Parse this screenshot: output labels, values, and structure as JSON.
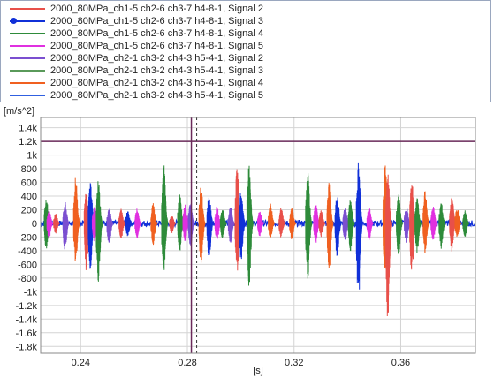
{
  "legend": [
    {
      "label": "2000_80MPa_ch1-5 ch2-6 ch3-7 h4-8-1, Signal 2",
      "color": "#e8504a",
      "marker": false
    },
    {
      "label": "2000_80MPa_ch1-5 ch2-6 ch3-7 h4-8-1, Signal 3",
      "color": "#1030d8",
      "marker": true
    },
    {
      "label": "2000_80MPa_ch1-5 ch2-6 ch3-7 h4-8-1, Signal 4",
      "color": "#2e8b3a",
      "marker": false
    },
    {
      "label": "2000_80MPa_ch1-5 ch2-6 ch3-7 h4-8-1, Signal 5",
      "color": "#e030e0",
      "marker": false
    },
    {
      "label": "2000_80MPa_ch2-1 ch3-2 ch4-3 h5-4-1, Signal 2",
      "color": "#7b4fd0",
      "marker": false
    },
    {
      "label": "2000_80MPa_ch2-1 ch3-2 ch4-3 h5-4-1, Signal 3",
      "color": "#5a9a5a",
      "marker": false
    },
    {
      "label": "2000_80MPa_ch2-1 ch3-2 ch4-3 h5-4-1, Signal 4",
      "color": "#f06020",
      "marker": false
    },
    {
      "label": "2000_80MPa_ch2-1 ch3-2 ch4-3 h5-4-1, Signal 5",
      "color": "#3060e0",
      "marker": false
    }
  ],
  "chart_data": {
    "type": "line",
    "ylabel": "[m/s^2]",
    "xlabel": "[s]",
    "xlim": [
      0.225,
      0.388
    ],
    "ylim": [
      -1900,
      1550
    ],
    "xticks": [
      0.24,
      0.28,
      0.32,
      0.36
    ],
    "xtick_labels": [
      "0.24",
      "0.28",
      "0.32",
      "0.36"
    ],
    "yticks": [
      1400,
      1200,
      1000,
      800,
      600,
      400,
      200,
      0,
      -200,
      -400,
      -600,
      -800,
      -1000,
      -1200,
      -1400,
      -1600,
      -1800
    ],
    "ytick_labels": [
      "1.4k",
      "1.2k",
      "1k",
      "800",
      "600",
      "400",
      "200",
      "0",
      "-200",
      "-400",
      "-600",
      "-800",
      "-1k",
      "-1.2k",
      "-1.4k",
      "-1.6k",
      "-1.8k"
    ],
    "grid": true,
    "reference_lines": [
      {
        "orientation": "horizontal",
        "value": 1200,
        "color": "#6a2a5a"
      },
      {
        "orientation": "vertical",
        "value": 0.2815,
        "color": "#6a2a5a"
      }
    ],
    "cursor": {
      "x": 0.2835,
      "color": "#333333"
    },
    "bursts": [
      {
        "series": "Signal 4",
        "color": "#2e8b3a",
        "x": 0.2275,
        "max": 390,
        "min": -390
      },
      {
        "series": "Signal 5",
        "color": "#e030e0",
        "x": 0.2285,
        "max": 200,
        "min": -230
      },
      {
        "series": "Signal 2",
        "color": "#e8504a",
        "x": 0.231,
        "max": 150,
        "min": -150
      },
      {
        "series": "Signal 5",
        "color": "#7b4fd0",
        "x": 0.2345,
        "max": 330,
        "min": -420
      },
      {
        "series": "Signal 4",
        "color": "#f06020",
        "x": 0.2385,
        "max": 720,
        "min": -580
      },
      {
        "series": "Signal 2",
        "color": "#e8504a",
        "x": 0.2425,
        "max": 530,
        "min": -700
      },
      {
        "series": "Signal 3",
        "color": "#1030d8",
        "x": 0.244,
        "max": 650,
        "min": -720
      },
      {
        "series": "Signal 5",
        "color": "#e030e0",
        "x": 0.2455,
        "max": 260,
        "min": -260
      },
      {
        "series": "Signal 3",
        "color": "#2e8b3a",
        "x": 0.247,
        "max": 640,
        "min": -920
      },
      {
        "series": "Signal 5",
        "color": "#7b4fd0",
        "x": 0.251,
        "max": 240,
        "min": -340
      },
      {
        "series": "Signal 4",
        "color": "#e8504a",
        "x": 0.2555,
        "max": 220,
        "min": -240
      },
      {
        "series": "Signal 3",
        "color": "#1030d8",
        "x": 0.258,
        "max": 200,
        "min": -190
      },
      {
        "series": "Signal 5",
        "color": "#e030e0",
        "x": 0.2615,
        "max": 220,
        "min": -220
      },
      {
        "series": "Signal 4",
        "color": "#f06020",
        "x": 0.2675,
        "max": 300,
        "min": -320
      },
      {
        "series": "Signal 3",
        "color": "#2e8b3a",
        "x": 0.2715,
        "max": 880,
        "min": -770
      },
      {
        "series": "Signal 2",
        "color": "#e8504a",
        "x": 0.2745,
        "max": 120,
        "min": -150
      },
      {
        "series": "Signal 4",
        "color": "#2e8b3a",
        "x": 0.2775,
        "max": 430,
        "min": -420
      },
      {
        "series": "Signal 5",
        "color": "#e030e0",
        "x": 0.2795,
        "max": 280,
        "min": -270
      },
      {
        "series": "Signal 5",
        "color": "#7b4fd0",
        "x": 0.2815,
        "max": 320,
        "min": -380
      },
      {
        "series": "Signal 4",
        "color": "#f06020",
        "x": 0.2855,
        "max": 560,
        "min": -620
      },
      {
        "series": "Signal 3",
        "color": "#1030d8",
        "x": 0.2885,
        "max": 430,
        "min": -560
      },
      {
        "series": "Signal 5",
        "color": "#e030e0",
        "x": 0.2915,
        "max": 260,
        "min": -270
      },
      {
        "series": "Signal 4",
        "color": "#2e8b3a",
        "x": 0.2935,
        "max": 220,
        "min": -230
      },
      {
        "series": "Signal 5",
        "color": "#7b4fd0",
        "x": 0.2965,
        "max": 250,
        "min": -300
      },
      {
        "series": "Signal 2",
        "color": "#e8504a",
        "x": 0.299,
        "max": 910,
        "min": -720
      },
      {
        "series": "Signal 3",
        "color": "#1030d8",
        "x": 0.3005,
        "max": 500,
        "min": -560
      },
      {
        "series": "Signal 4",
        "color": "#2e8b3a",
        "x": 0.3035,
        "max": 940,
        "min": -940
      },
      {
        "series": "Signal 5",
        "color": "#e030e0",
        "x": 0.3075,
        "max": 190,
        "min": -190
      },
      {
        "series": "Signal 4",
        "color": "#f06020",
        "x": 0.3115,
        "max": 300,
        "min": -230
      },
      {
        "series": "Signal 2",
        "color": "#e8504a",
        "x": 0.3155,
        "max": 230,
        "min": -220
      },
      {
        "series": "Signal 4",
        "color": "#f06020",
        "x": 0.3195,
        "max": 240,
        "min": -240
      },
      {
        "series": "Signal 3",
        "color": "#2e8b3a",
        "x": 0.3255,
        "max": 750,
        "min": -860
      },
      {
        "series": "Signal 5",
        "color": "#e030e0",
        "x": 0.3285,
        "max": 300,
        "min": -300
      },
      {
        "series": "Signal 2",
        "color": "#e8504a",
        "x": 0.3305,
        "max": 200,
        "min": -200
      },
      {
        "series": "Signal 4",
        "color": "#f06020",
        "x": 0.3335,
        "max": 610,
        "min": -700
      },
      {
        "series": "Signal 3",
        "color": "#1030d8",
        "x": 0.3365,
        "max": 430,
        "min": -500
      },
      {
        "series": "Signal 5",
        "color": "#7b4fd0",
        "x": 0.3395,
        "max": 240,
        "min": -270
      },
      {
        "series": "Signal 3",
        "color": "#2e8b3a",
        "x": 0.3415,
        "max": 350,
        "min": -420
      },
      {
        "series": "Signal 3",
        "color": "#1030d8",
        "x": 0.3445,
        "max": 920,
        "min": -1270
      },
      {
        "series": "Signal 5",
        "color": "#e030e0",
        "x": 0.3485,
        "max": 240,
        "min": -260
      },
      {
        "series": "Signal 4",
        "color": "#f06020",
        "x": 0.3545,
        "max": 880,
        "min": -780
      },
      {
        "series": "Signal 2",
        "color": "#e8504a",
        "x": 0.3555,
        "max": 760,
        "min": -1440
      },
      {
        "series": "Signal 3",
        "color": "#2e8b3a",
        "x": 0.3595,
        "max": 440,
        "min": -500
      },
      {
        "series": "Signal 5",
        "color": "#7b4fd0",
        "x": 0.3625,
        "max": 250,
        "min": -300
      },
      {
        "series": "Signal 2",
        "color": "#e8504a",
        "x": 0.3645,
        "max": 660,
        "min": -760
      },
      {
        "series": "Signal 3",
        "color": "#2e8b3a",
        "x": 0.3665,
        "max": 400,
        "min": -450
      },
      {
        "series": "Signal 4",
        "color": "#f06020",
        "x": 0.3695,
        "max": 500,
        "min": -440
      },
      {
        "series": "Signal 5",
        "color": "#e030e0",
        "x": 0.3725,
        "max": 260,
        "min": -260
      },
      {
        "series": "Signal 4",
        "color": "#2e8b3a",
        "x": 0.3755,
        "max": 320,
        "min": -370
      },
      {
        "series": "Signal 2",
        "color": "#e8504a",
        "x": 0.3795,
        "max": 430,
        "min": -420
      },
      {
        "series": "Signal 4",
        "color": "#f06020",
        "x": 0.3815,
        "max": 240,
        "min": -210
      },
      {
        "series": "Signal 3",
        "color": "#2e8b3a",
        "x": 0.3845,
        "max": 200,
        "min": -200
      }
    ]
  }
}
